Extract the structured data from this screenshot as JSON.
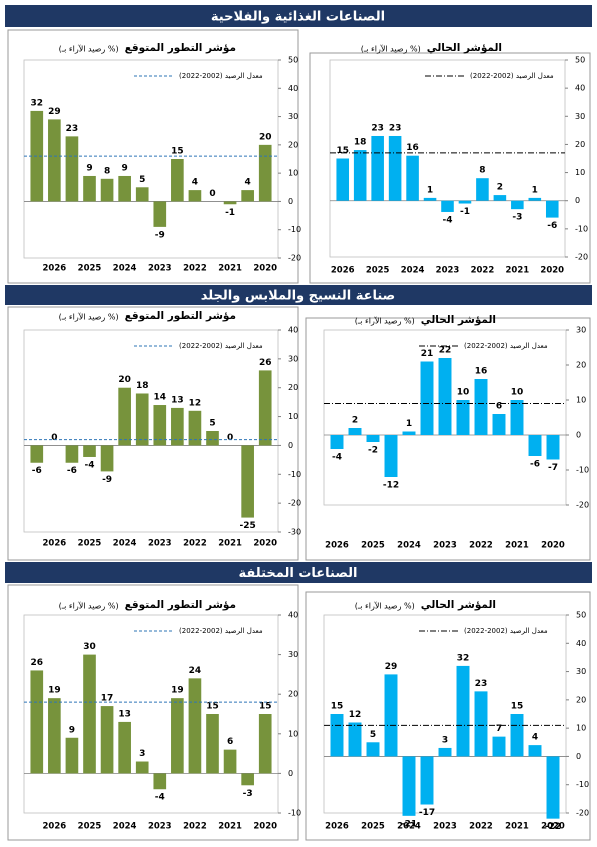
{
  "sections": [
    {
      "title": "الصناعات الغذائية والفلاحية"
    },
    {
      "title": "صناعة النسيج والملابس والجلد"
    },
    {
      "title": "الصناعات المختلفة"
    }
  ],
  "chart_data": [
    {
      "type": "bar",
      "title": "مؤشر التطور المتوقع",
      "subtitle": "(رصيد الآراء بـ %)",
      "categories": [
        null,
        "2026",
        null,
        "2025",
        null,
        "2024",
        null,
        "2023",
        null,
        "2022",
        null,
        "2021",
        null,
        "2020"
      ],
      "values": [
        32,
        29,
        23,
        9,
        8,
        9,
        5,
        -9,
        15,
        4,
        0,
        -1,
        4,
        20
      ],
      "color": "#77933c",
      "ylim": [
        -20,
        50
      ],
      "yticks": [
        -20,
        -10,
        0,
        10,
        20,
        30,
        40,
        50
      ],
      "reference_line": {
        "name": "معدل الرصيد (2002-2022)",
        "value": 16,
        "style": "dashed",
        "color": "#2e75b6"
      }
    },
    {
      "type": "bar",
      "title": "المؤشر الحالي",
      "subtitle": "(رصيد الآراء بـ %)",
      "categories": [
        "2026",
        null,
        "2025",
        null,
        "2024",
        null,
        "2023",
        null,
        "2022",
        null,
        "2021",
        null,
        "2020"
      ],
      "values": [
        15,
        18,
        23,
        23,
        16,
        1,
        -4,
        -1,
        8,
        2,
        -3,
        1,
        -6
      ],
      "color": "#00b0f0",
      "ylim": [
        -20,
        50
      ],
      "yticks": [
        -20,
        -10,
        0,
        10,
        20,
        30,
        40,
        50
      ],
      "reference_line": {
        "name": "معدل الرصيد (2002-2022)",
        "value": 17,
        "style": "dashdot",
        "color": "#000000"
      }
    },
    {
      "type": "bar",
      "title": "مؤشر التطور المتوقع",
      "subtitle": "(رصيد الآراء بـ %)",
      "categories": [
        null,
        "2026",
        null,
        "2025",
        null,
        "2024",
        null,
        "2023",
        null,
        "2022",
        null,
        "2021",
        null,
        "2020"
      ],
      "values": [
        -6,
        0,
        -6,
        -4,
        -9,
        20,
        18,
        14,
        13,
        12,
        5,
        0,
        -25,
        26
      ],
      "color": "#77933c",
      "ylim": [
        -30,
        40
      ],
      "yticks": [
        -30,
        -20,
        -10,
        0,
        10,
        20,
        30,
        40
      ],
      "reference_line": {
        "name": "معدل الرصيد (2002-2022)",
        "value": 2,
        "style": "dashed",
        "color": "#2e75b6"
      }
    },
    {
      "type": "bar",
      "title": "المؤشر الحالي",
      "subtitle": "(رصيد الآراء بـ %)",
      "categories": [
        "2026",
        null,
        "2025",
        null,
        "2024",
        null,
        "2023",
        null,
        "2022",
        null,
        "2021",
        null,
        "2020"
      ],
      "values": [
        -4,
        2,
        -2,
        -12,
        1,
        21,
        22,
        10,
        16,
        6,
        10,
        -6,
        -7
      ],
      "color": "#00b0f0",
      "ylim": [
        -20,
        30
      ],
      "yticks": [
        -20,
        -10,
        0,
        10,
        20,
        30
      ],
      "reference_line": {
        "name": "معدل الرصيد (2002-2022)",
        "value": 9,
        "style": "dashdot",
        "color": "#000000"
      }
    },
    {
      "type": "bar",
      "title": "مؤشر التطور المتوقع",
      "subtitle": "(رصيد الآراء بـ %)",
      "categories": [
        null,
        "2026",
        null,
        "2025",
        null,
        "2024",
        null,
        "2023",
        null,
        "2022",
        null,
        "2021",
        null,
        "2020"
      ],
      "values": [
        26,
        19,
        9,
        30,
        17,
        13,
        3,
        -4,
        19,
        24,
        15,
        6,
        -3,
        15
      ],
      "color": "#77933c",
      "ylim": [
        -10,
        40
      ],
      "yticks": [
        -10,
        0,
        10,
        20,
        30,
        40
      ],
      "reference_line": {
        "name": "معدل الرصيد (2002-2022)",
        "value": 18,
        "style": "dashed",
        "color": "#2e75b6"
      }
    },
    {
      "type": "bar",
      "title": "المؤشر الحالي",
      "subtitle": "(رصيد الآراء بـ %)",
      "categories": [
        "2026",
        null,
        "2025",
        null,
        "2024",
        null,
        "2023",
        null,
        "2022",
        null,
        "2021",
        null,
        "2020"
      ],
      "values": [
        15,
        12,
        5,
        29,
        -21,
        -17,
        3,
        32,
        23,
        7,
        15,
        4,
        -22
      ],
      "color": "#00b0f0",
      "ylim": [
        -20,
        50
      ],
      "yticks": [
        -20,
        -10,
        0,
        10,
        20,
        30,
        40,
        50
      ],
      "reference_line": {
        "name": "معدل الرصيد (2002-2022)",
        "value": 11,
        "style": "dashdot",
        "color": "#000000"
      }
    }
  ]
}
